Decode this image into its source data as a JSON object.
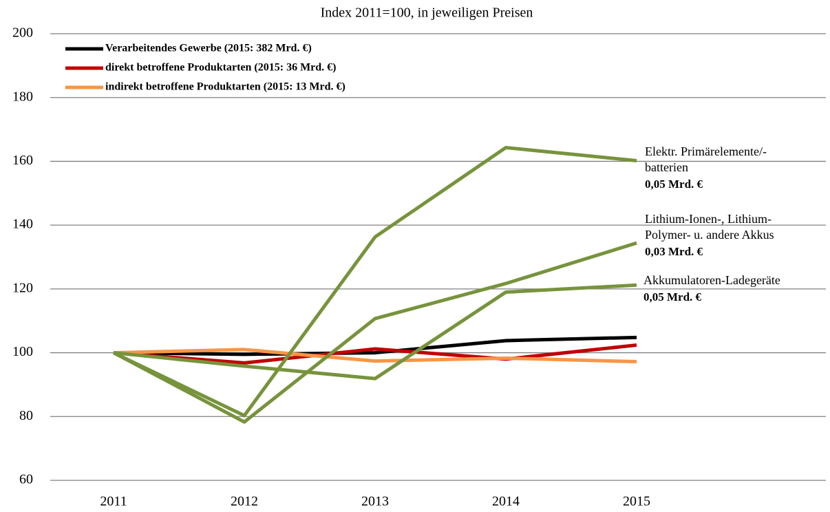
{
  "chart_data": {
    "type": "line",
    "title": "Index 2011=100, in jeweiligen Preisen",
    "categories": [
      "2011",
      "2012",
      "2013",
      "2014",
      "2015",
      null
    ],
    "series": [
      {
        "name": "Verarbeitendes Gewerbe (2015: 382 Mrd. €)",
        "color": "#000000",
        "values": [
          100,
          99.5,
          100,
          103.8,
          104.8,
          null
        ]
      },
      {
        "name": "direkt betroffene Produktarten (2015: 36 Mrd. €)",
        "color": "#c00000",
        "values": [
          100,
          96.8,
          101.2,
          98,
          102.4,
          null
        ]
      },
      {
        "name": "indirekt betroffene Produktarten (2015: 13 Mrd. €)",
        "color": "#f79646",
        "values": [
          100,
          101,
          97.4,
          98.3,
          97.2,
          null
        ]
      },
      {
        "color": "#77933c",
        "values": [
          100,
          80.3,
          136.3,
          164.3,
          160.2,
          null
        ]
      },
      {
        "color": "#77933c",
        "values": [
          100,
          78.3,
          110.7,
          121.7,
          134.4,
          null
        ]
      },
      {
        "color": "#77933c",
        "values": [
          100,
          95.8,
          91.9,
          119,
          121.2,
          null
        ]
      }
    ],
    "annotations": [
      {
        "lines": [
          "Elektr. Primärelemente/-",
          "batterien"
        ],
        "value": "0,05 Mrd. €"
      },
      {
        "lines": [
          "Lithium-Ionen-, Lithium-",
          "Polymer- u. andere Akkus"
        ],
        "value": "0,03 Mrd. €"
      },
      {
        "lines": [
          "Akkumulatoren-Ladegeräte"
        ],
        "value": "0,05 Mrd. €"
      }
    ],
    "ylim": [
      60,
      200
    ],
    "yticks": [
      60,
      80,
      100,
      120,
      140,
      160,
      180,
      200
    ],
    "grid": true,
    "legend": "top-left"
  }
}
